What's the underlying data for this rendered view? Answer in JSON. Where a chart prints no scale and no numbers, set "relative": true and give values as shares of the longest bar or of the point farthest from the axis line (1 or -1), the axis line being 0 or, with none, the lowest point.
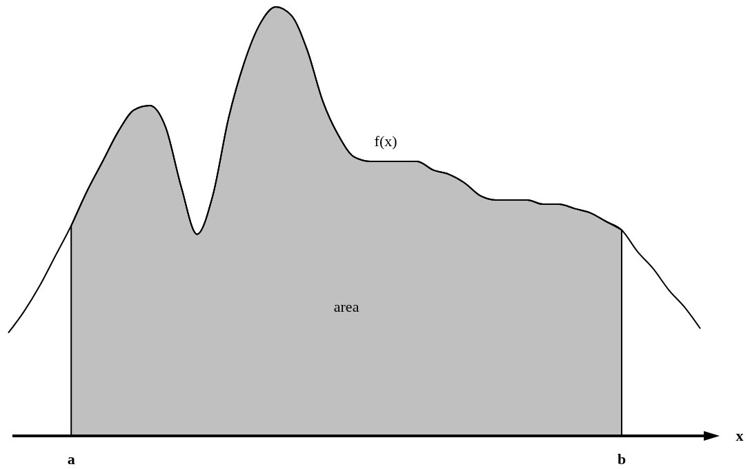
{
  "chart_data": {
    "type": "line",
    "relative": true,
    "xlabel": "x",
    "categories": [
      null,
      null,
      null,
      null,
      "a",
      null,
      null,
      null,
      null,
      null,
      null,
      null,
      null,
      null,
      null,
      null,
      null,
      null,
      null,
      null,
      null,
      null,
      null,
      null,
      null,
      null,
      null,
      null,
      null,
      null,
      null,
      null,
      null,
      null,
      null,
      null,
      null,
      null,
      null,
      "b",
      null,
      null,
      null,
      null,
      null
    ],
    "series": [
      {
        "name": "area",
        "type": "area",
        "color": "#c0c0c0",
        "values": [
          null,
          null,
          null,
          null,
          0.49,
          0.57,
          0.64,
          0.71,
          0.76,
          0.77,
          0.72,
          0.58,
          0.47,
          0.56,
          0.74,
          0.87,
          0.96,
          1.0,
          0.98,
          0.9,
          0.78,
          0.7,
          0.65,
          0.64,
          0.64,
          0.64,
          0.64,
          0.62,
          0.61,
          0.59,
          0.56,
          0.55,
          0.55,
          0.55,
          0.54,
          0.54,
          0.53,
          0.52,
          0.5,
          0.48,
          null,
          null,
          null,
          null,
          null
        ]
      },
      {
        "name": "f(x)",
        "color": "#000000",
        "values": [
          0.24,
          0.29,
          0.35,
          0.42,
          0.49,
          0.57,
          0.64,
          0.71,
          0.76,
          0.77,
          0.72,
          0.58,
          0.47,
          0.56,
          0.74,
          0.87,
          0.96,
          1.0,
          0.98,
          0.9,
          0.78,
          0.7,
          0.65,
          0.64,
          0.64,
          0.64,
          0.64,
          0.62,
          0.61,
          0.59,
          0.56,
          0.55,
          0.55,
          0.55,
          0.54,
          0.54,
          0.53,
          0.52,
          0.5,
          0.48,
          0.43,
          0.39,
          0.34,
          0.3,
          0.25
        ]
      }
    ]
  }
}
